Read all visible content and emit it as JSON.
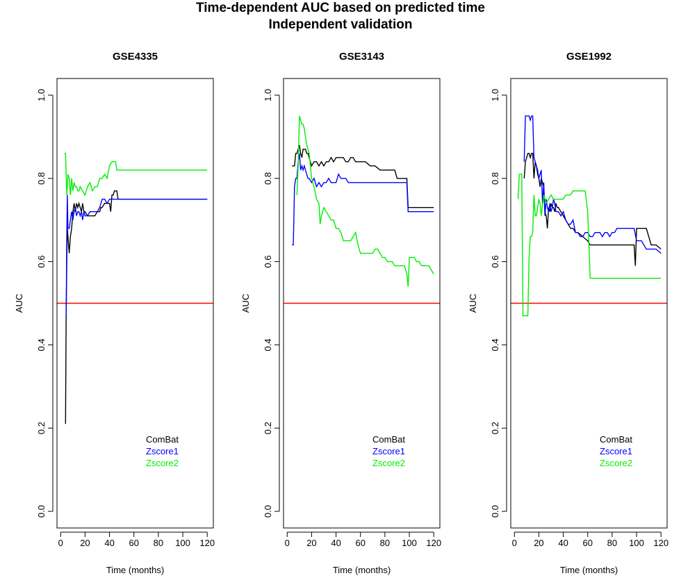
{
  "title": {
    "line1": "Time-dependent AUC based on predicted time",
    "line2": "Independent validation"
  },
  "chart_data": [
    {
      "type": "line",
      "title": "GSE4335",
      "xlabel": "Time (months)",
      "ylabel": "AUC",
      "xlim": [
        -3,
        125
      ],
      "ylim": [
        -0.04,
        1.04
      ],
      "xticks": [
        0,
        20,
        40,
        60,
        80,
        100,
        120
      ],
      "yticks": [
        0.0,
        0.2,
        0.4,
        0.6,
        0.8,
        1.0
      ],
      "ytick_labels": [
        "0.0",
        "0.2",
        "0.4",
        "0.6",
        "0.8",
        "1.0"
      ],
      "legend_position": "bottom-right",
      "reference_line": {
        "y": 0.5,
        "color": "#ff0000"
      },
      "series": [
        {
          "name": "ComBat",
          "color": "#000000",
          "x": [
            4,
            4.5,
            5,
            5.5,
            6,
            7,
            8,
            9,
            10,
            11,
            12,
            13,
            14,
            15,
            16,
            17,
            18,
            19,
            20,
            22,
            24,
            26,
            28,
            30,
            32,
            33,
            34,
            36,
            38,
            40,
            41,
            42,
            43,
            44,
            45,
            46,
            47,
            48,
            120
          ],
          "y": [
            0.21,
            0.47,
            0.6,
            0.68,
            0.66,
            0.62,
            0.66,
            0.68,
            0.72,
            0.74,
            0.72,
            0.74,
            0.73,
            0.74,
            0.73,
            0.72,
            0.74,
            0.72,
            0.72,
            0.71,
            0.71,
            0.71,
            0.71,
            0.72,
            0.72,
            0.73,
            0.73,
            0.74,
            0.74,
            0.74,
            0.72,
            0.76,
            0.76,
            0.77,
            0.77,
            0.77,
            0.75,
            0.75,
            0.75
          ]
        },
        {
          "name": "Zscore1",
          "color": "#0000ff",
          "x": [
            4,
            4.5,
            5,
            5.5,
            6,
            7,
            8,
            9,
            10,
            11,
            12,
            13,
            14,
            15,
            16,
            17,
            18,
            19,
            20,
            22,
            24,
            26,
            28,
            30,
            32,
            34,
            36,
            38,
            40,
            42,
            44,
            46,
            48,
            120
          ],
          "y": [
            0.47,
            0.47,
            0.66,
            0.76,
            0.68,
            0.68,
            0.7,
            0.72,
            0.7,
            0.72,
            0.73,
            0.71,
            0.72,
            0.72,
            0.71,
            0.72,
            0.7,
            0.72,
            0.71,
            0.71,
            0.72,
            0.72,
            0.72,
            0.72,
            0.73,
            0.75,
            0.75,
            0.74,
            0.75,
            0.75,
            0.75,
            0.75,
            0.75,
            0.75
          ]
        },
        {
          "name": "Zscore2",
          "color": "#00ee00",
          "x": [
            3,
            4,
            5,
            6,
            7,
            8,
            9,
            10,
            11,
            12,
            13,
            14,
            15,
            16,
            18,
            20,
            22,
            24,
            26,
            28,
            30,
            32,
            34,
            36,
            38,
            40,
            42,
            44,
            45,
            46,
            47,
            120
          ],
          "y": [
            0.86,
            0.86,
            0.76,
            0.81,
            0.8,
            0.76,
            0.8,
            0.77,
            0.79,
            0.78,
            0.78,
            0.77,
            0.77,
            0.78,
            0.77,
            0.76,
            0.78,
            0.79,
            0.77,
            0.78,
            0.78,
            0.8,
            0.8,
            0.81,
            0.8,
            0.83,
            0.84,
            0.84,
            0.84,
            0.82,
            0.82,
            0.82
          ]
        }
      ]
    },
    {
      "type": "line",
      "title": "GSE3143",
      "xlabel": "Time (months)",
      "ylabel": "AUC",
      "xlim": [
        -3,
        125
      ],
      "ylim": [
        -0.04,
        1.04
      ],
      "xticks": [
        0,
        20,
        40,
        60,
        80,
        100,
        120
      ],
      "yticks": [
        0.0,
        0.2,
        0.4,
        0.6,
        0.8,
        1.0
      ],
      "ytick_labels": [
        "0.0",
        "0.2",
        "0.4",
        "0.6",
        "0.8",
        "1.0"
      ],
      "legend_position": "bottom-right",
      "reference_line": {
        "y": 0.5,
        "color": "#ff0000"
      },
      "series": [
        {
          "name": "ComBat",
          "color": "#000000",
          "x": [
            4,
            6,
            7,
            8,
            9,
            10,
            11,
            12,
            13,
            14,
            15,
            16,
            17,
            18,
            20,
            22,
            24,
            26,
            28,
            30,
            32,
            34,
            36,
            38,
            40,
            42,
            44,
            46,
            48,
            50,
            52,
            54,
            56,
            58,
            60,
            64,
            68,
            72,
            76,
            80,
            84,
            88,
            90,
            92,
            94,
            96,
            98,
            99,
            100,
            120
          ],
          "y": [
            0.83,
            0.83,
            0.86,
            0.86,
            0.87,
            0.88,
            0.86,
            0.85,
            0.87,
            0.87,
            0.87,
            0.86,
            0.86,
            0.85,
            0.83,
            0.84,
            0.84,
            0.83,
            0.84,
            0.83,
            0.84,
            0.84,
            0.85,
            0.84,
            0.85,
            0.85,
            0.85,
            0.85,
            0.84,
            0.84,
            0.85,
            0.85,
            0.84,
            0.84,
            0.84,
            0.84,
            0.83,
            0.83,
            0.82,
            0.82,
            0.82,
            0.82,
            0.8,
            0.8,
            0.8,
            0.8,
            0.8,
            0.73,
            0.73,
            0.73
          ]
        },
        {
          "name": "Zscore1",
          "color": "#0000ff",
          "x": [
            4,
            5,
            6,
            7,
            8,
            9,
            10,
            11,
            12,
            13,
            14,
            15,
            16,
            17,
            18,
            20,
            22,
            24,
            26,
            28,
            30,
            32,
            34,
            36,
            38,
            40,
            42,
            44,
            46,
            48,
            50,
            52,
            56,
            60,
            64,
            70,
            80,
            90,
            98,
            99,
            100,
            120
          ],
          "y": [
            0.64,
            0.64,
            0.78,
            0.8,
            0.8,
            0.84,
            0.86,
            0.82,
            0.83,
            0.82,
            0.83,
            0.82,
            0.81,
            0.8,
            0.8,
            0.79,
            0.8,
            0.78,
            0.79,
            0.78,
            0.79,
            0.79,
            0.8,
            0.79,
            0.79,
            0.79,
            0.81,
            0.8,
            0.8,
            0.8,
            0.79,
            0.79,
            0.79,
            0.79,
            0.79,
            0.79,
            0.79,
            0.79,
            0.79,
            0.72,
            0.72,
            0.72
          ]
        },
        {
          "name": "Zscore2",
          "color": "#00ee00",
          "x": [
            8,
            9,
            10,
            11,
            12,
            13,
            14,
            15,
            16,
            17,
            18,
            20,
            21,
            22,
            24,
            26,
            27,
            28,
            30,
            32,
            34,
            36,
            38,
            40,
            42,
            44,
            46,
            48,
            50,
            52,
            54,
            56,
            58,
            60,
            62,
            64,
            66,
            68,
            70,
            72,
            74,
            76,
            78,
            80,
            82,
            84,
            86,
            88,
            90,
            92,
            94,
            96,
            98,
            99,
            100,
            104,
            106,
            108,
            110,
            112,
            114,
            116,
            118,
            120
          ],
          "y": [
            0.76,
            0.83,
            0.95,
            0.94,
            0.93,
            0.93,
            0.92,
            0.9,
            0.88,
            0.87,
            0.86,
            0.8,
            0.79,
            0.78,
            0.75,
            0.74,
            0.69,
            0.71,
            0.73,
            0.72,
            0.71,
            0.7,
            0.7,
            0.68,
            0.68,
            0.67,
            0.65,
            0.65,
            0.65,
            0.65,
            0.66,
            0.67,
            0.64,
            0.62,
            0.62,
            0.62,
            0.62,
            0.62,
            0.62,
            0.63,
            0.63,
            0.62,
            0.61,
            0.61,
            0.6,
            0.6,
            0.6,
            0.59,
            0.59,
            0.59,
            0.59,
            0.59,
            0.57,
            0.54,
            0.61,
            0.61,
            0.6,
            0.6,
            0.59,
            0.59,
            0.59,
            0.59,
            0.58,
            0.57
          ]
        }
      ]
    },
    {
      "type": "line",
      "title": "GSE1992",
      "xlabel": "Time (months)",
      "ylabel": "AUC",
      "xlim": [
        -3,
        125
      ],
      "ylim": [
        -0.04,
        1.04
      ],
      "xticks": [
        0,
        20,
        40,
        60,
        80,
        100,
        120
      ],
      "yticks": [
        0.0,
        0.2,
        0.4,
        0.6,
        0.8,
        1.0
      ],
      "ytick_labels": [
        "0.0",
        "0.2",
        "0.4",
        "0.6",
        "0.8",
        "1.0"
      ],
      "legend_position": "bottom-right",
      "reference_line": {
        "y": 0.5,
        "color": "#ff0000"
      },
      "series": [
        {
          "name": "ComBat",
          "color": "#000000",
          "x": [
            8,
            9,
            10,
            11,
            12,
            13,
            14,
            15,
            16,
            17,
            18,
            19,
            20,
            21,
            22,
            23,
            24,
            25,
            26,
            27,
            28,
            29,
            30,
            31,
            32,
            33,
            34,
            35,
            36,
            38,
            40,
            42,
            44,
            46,
            48,
            50,
            52,
            56,
            60,
            62,
            66,
            70,
            74,
            80,
            86,
            90,
            96,
            98,
            99,
            100,
            104,
            108,
            112,
            116,
            120
          ],
          "y": [
            0.8,
            0.84,
            0.85,
            0.86,
            0.86,
            0.85,
            0.86,
            0.86,
            0.8,
            0.84,
            0.83,
            0.81,
            0.8,
            0.78,
            0.8,
            0.79,
            0.78,
            0.72,
            0.71,
            0.68,
            0.73,
            0.72,
            0.74,
            0.73,
            0.73,
            0.72,
            0.74,
            0.73,
            0.73,
            0.72,
            0.71,
            0.7,
            0.69,
            0.68,
            0.68,
            0.67,
            0.67,
            0.66,
            0.65,
            0.64,
            0.64,
            0.64,
            0.64,
            0.64,
            0.64,
            0.64,
            0.64,
            0.64,
            0.59,
            0.68,
            0.68,
            0.68,
            0.64,
            0.64,
            0.63
          ]
        },
        {
          "name": "Zscore1",
          "color": "#0000ff",
          "x": [
            8,
            9,
            10,
            11,
            12,
            13,
            14,
            15,
            16,
            17,
            18,
            19,
            20,
            21,
            22,
            23,
            24,
            25,
            26,
            27,
            28,
            29,
            30,
            31,
            32,
            33,
            34,
            36,
            38,
            40,
            42,
            44,
            46,
            48,
            50,
            52,
            54,
            56,
            58,
            60,
            62,
            64,
            66,
            68,
            70,
            72,
            74,
            76,
            78,
            80,
            82,
            84,
            86,
            90,
            96,
            98,
            100,
            104,
            108,
            112,
            116,
            120
          ],
          "y": [
            0.84,
            0.95,
            0.95,
            0.95,
            0.95,
            0.94,
            0.95,
            0.95,
            0.85,
            0.84,
            0.83,
            0.82,
            0.8,
            0.81,
            0.82,
            0.74,
            0.79,
            0.71,
            0.75,
            0.73,
            0.72,
            0.74,
            0.72,
            0.73,
            0.75,
            0.74,
            0.72,
            0.72,
            0.71,
            0.72,
            0.7,
            0.69,
            0.69,
            0.7,
            0.67,
            0.67,
            0.66,
            0.66,
            0.67,
            0.67,
            0.66,
            0.66,
            0.67,
            0.67,
            0.67,
            0.66,
            0.67,
            0.67,
            0.66,
            0.67,
            0.67,
            0.68,
            0.68,
            0.68,
            0.68,
            0.68,
            0.65,
            0.65,
            0.63,
            0.63,
            0.63,
            0.62
          ]
        },
        {
          "name": "Zscore2",
          "color": "#00ee00",
          "x": [
            3,
            4,
            5,
            6,
            7,
            8,
            9,
            10,
            11,
            12,
            13,
            14,
            15,
            16,
            17,
            18,
            19,
            20,
            21,
            22,
            24,
            26,
            28,
            30,
            32,
            34,
            36,
            38,
            40,
            42,
            44,
            46,
            48,
            50,
            52,
            54,
            56,
            58,
            60,
            62,
            64,
            66,
            70,
            80,
            90,
            100,
            110,
            120
          ],
          "y": [
            0.75,
            0.81,
            0.81,
            0.81,
            0.47,
            0.47,
            0.47,
            0.47,
            0.47,
            0.61,
            0.66,
            0.66,
            0.67,
            0.76,
            0.71,
            0.71,
            0.73,
            0.75,
            0.74,
            0.71,
            0.76,
            0.74,
            0.75,
            0.76,
            0.75,
            0.75,
            0.75,
            0.75,
            0.75,
            0.76,
            0.76,
            0.76,
            0.77,
            0.77,
            0.77,
            0.77,
            0.77,
            0.77,
            0.72,
            0.56,
            0.56,
            0.56,
            0.56,
            0.56,
            0.56,
            0.56,
            0.56,
            0.56
          ]
        }
      ]
    }
  ]
}
